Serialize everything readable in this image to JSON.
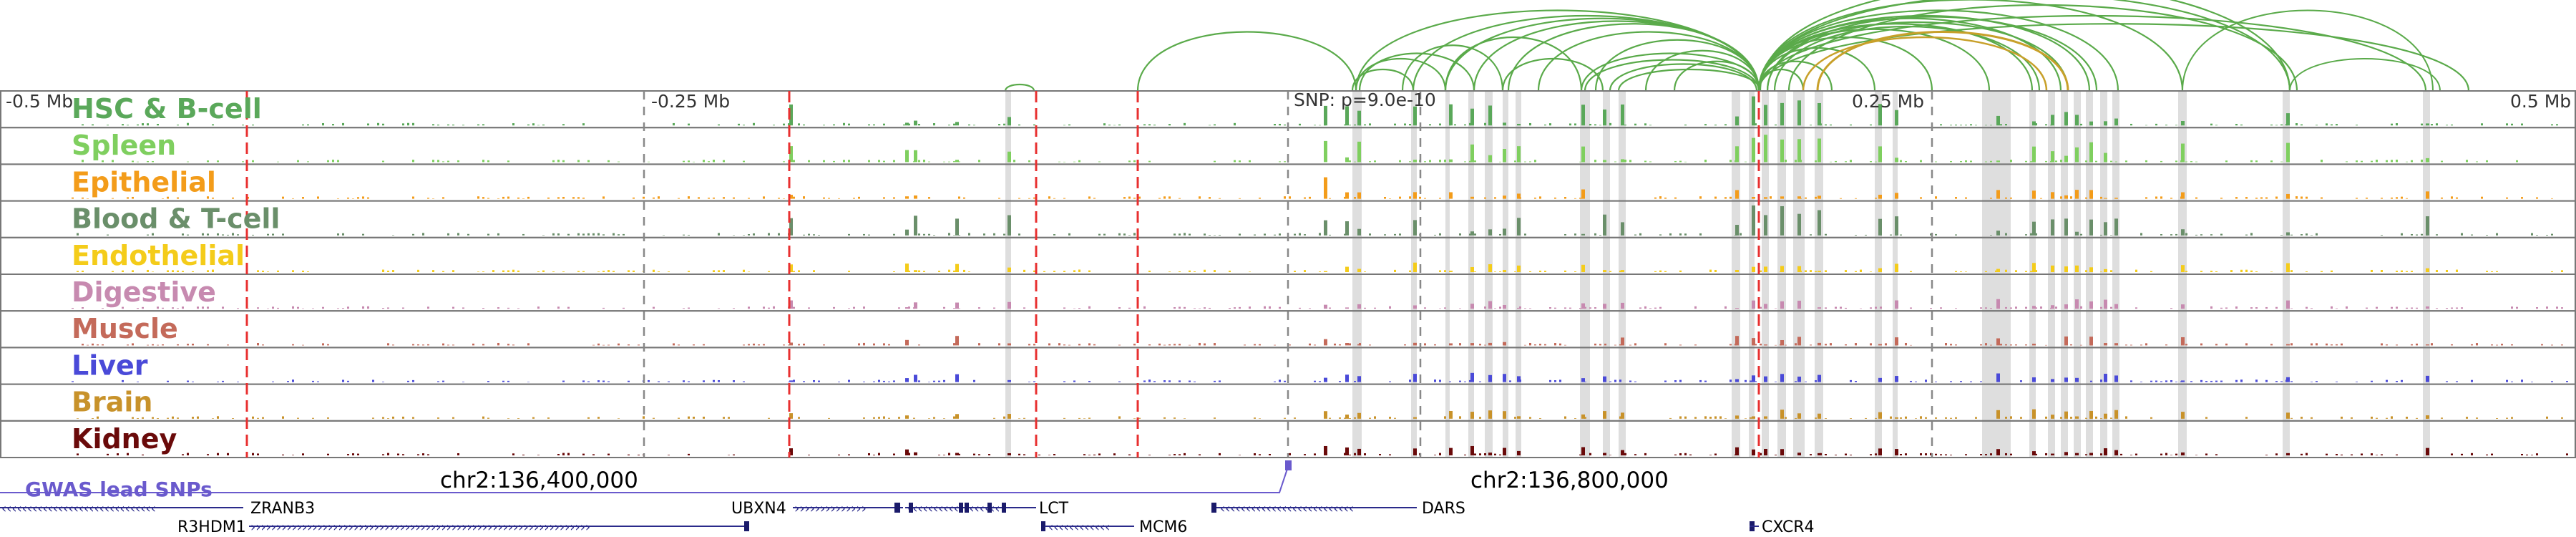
{
  "position_labels": {
    "left": "-0.5 Mb",
    "mid_left": "-0.25 Mb",
    "mid_right": "0.25 Mb",
    "right": "0.5 Mb"
  },
  "snp_label": "SNP: p=9.0e-10",
  "tracks": [
    {
      "name": "HSC & B-cell",
      "color": "#5aa85a"
    },
    {
      "name": "Spleen",
      "color": "#7fcf5f"
    },
    {
      "name": "Epithelial",
      "color": "#f39c1a"
    },
    {
      "name": "Blood & T-cell",
      "color": "#6a8f6a"
    },
    {
      "name": "Endothelial",
      "color": "#f4cc1a"
    },
    {
      "name": "Digestive",
      "color": "#c78ab0"
    },
    {
      "name": "Muscle",
      "color": "#c46a5a"
    },
    {
      "name": "Liver",
      "color": "#4a4ad8"
    },
    {
      "name": "Brain",
      "color": "#c8922a"
    },
    {
      "name": "Kidney",
      "color": "#6a0a0a"
    }
  ],
  "gwas": {
    "label": "GWAS lead SNPs",
    "color": "#6a5acd"
  },
  "coordinates": {
    "left": "chr2:136,400,000",
    "right": "chr2:136,800,000"
  },
  "genes": [
    {
      "name": "ZRANB3",
      "row": 1,
      "strand": "-"
    },
    {
      "name": "UBXN4",
      "row": 1,
      "strand": "+"
    },
    {
      "name": "LCT",
      "row": 1,
      "strand": "-"
    },
    {
      "name": "DARS",
      "row": 1,
      "strand": "-"
    },
    {
      "name": "R3HDM1",
      "row": 2,
      "strand": "+"
    },
    {
      "name": "MCM6",
      "row": 2,
      "strand": "-"
    },
    {
      "name": "CXCR4",
      "row": 2,
      "strand": "-"
    }
  ],
  "colors": {
    "loop": "#5aaa4a",
    "loop_highlight": "#c8a02a",
    "red_line": "#e83030",
    "gray_line": "#888888",
    "highlight_band": "#d8d8d8"
  }
}
